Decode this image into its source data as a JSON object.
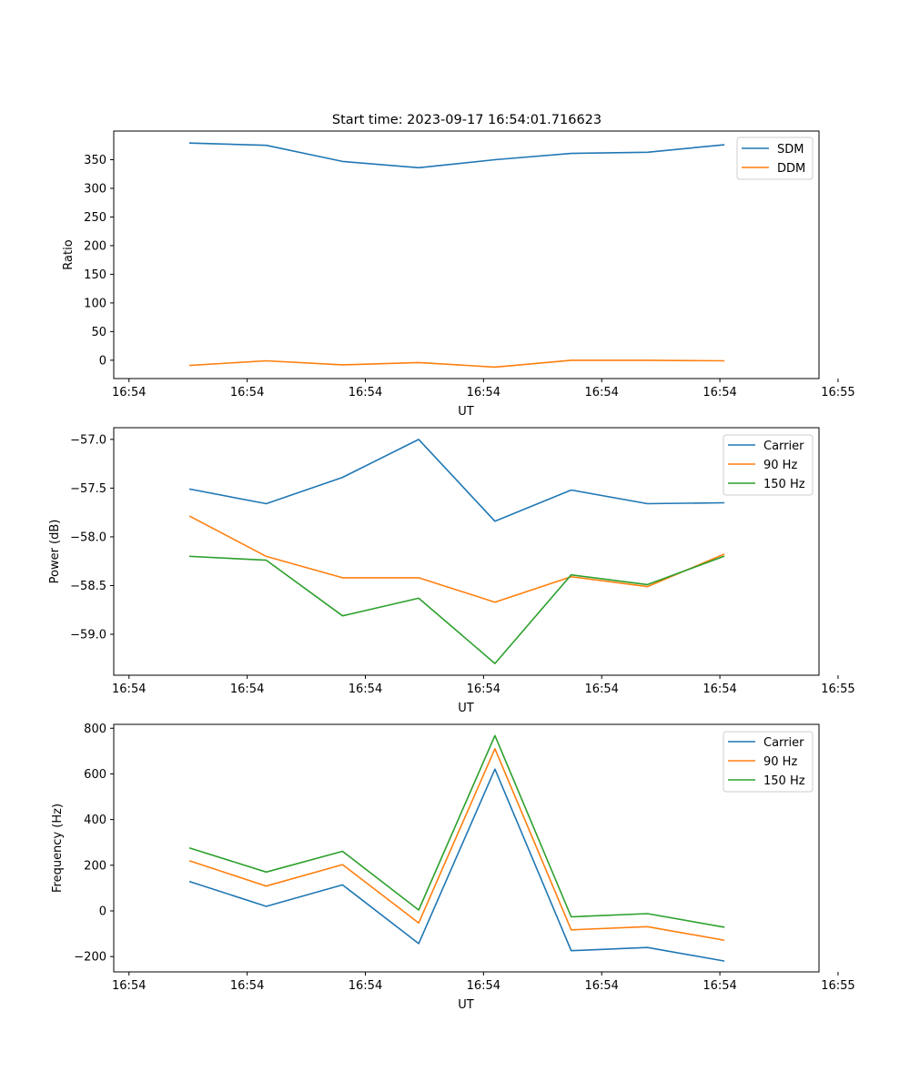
{
  "figure_title": "Start time: 2023-09-17 16:54:01.716623",
  "colors": {
    "blue": "#1f77b4",
    "orange": "#ff7f0e",
    "green": "#2ca02c",
    "axis": "#000000",
    "legend_border": "#cccccc"
  },
  "chart_data": [
    {
      "type": "line",
      "title": "Start time: 2023-09-17 16:54:01.716623",
      "xlabel": "UT",
      "ylabel": "Ratio",
      "grid": false,
      "legend_position": "top-right",
      "xlim": [
        0,
        9.25
      ],
      "ylim": [
        -32,
        400
      ],
      "x_ticks": [
        0.2,
        1.75,
        3.3,
        4.85,
        6.4,
        7.95,
        9.5
      ],
      "x_tick_labels": [
        "16:54",
        "16:54",
        "16:54",
        "16:54",
        "16:54",
        "16:54",
        "16:55"
      ],
      "y_ticks": [
        0,
        50,
        100,
        150,
        200,
        250,
        300,
        350
      ],
      "y_tick_labels": [
        "0",
        "50",
        "100",
        "150",
        "200",
        "250",
        "300",
        "350"
      ],
      "x": [
        1,
        2,
        3,
        4,
        5,
        6,
        7,
        8
      ],
      "series": [
        {
          "name": "SDM",
          "color": "#1f77b4",
          "values": [
            379,
            375,
            347,
            336,
            350,
            361,
            363,
            376
          ]
        },
        {
          "name": "DDM",
          "color": "#ff7f0e",
          "values": [
            -9,
            -1,
            -8,
            -4,
            -12,
            0,
            0,
            -1
          ]
        }
      ]
    },
    {
      "type": "line",
      "title": "",
      "xlabel": "UT",
      "ylabel": "Power (dB)",
      "grid": false,
      "legend_position": "top-right",
      "xlim": [
        0,
        9.25
      ],
      "ylim": [
        -59.42,
        -56.88
      ],
      "x_ticks": [
        0.2,
        1.75,
        3.3,
        4.85,
        6.4,
        7.95,
        9.5
      ],
      "x_tick_labels": [
        "16:54",
        "16:54",
        "16:54",
        "16:54",
        "16:54",
        "16:54",
        "16:55"
      ],
      "y_ticks": [
        -57.0,
        -57.5,
        -58.0,
        -58.5,
        -59.0
      ],
      "y_tick_labels": [
        "−57.0",
        "−57.5",
        "−58.0",
        "−58.5",
        "−59.0"
      ],
      "x": [
        1,
        2,
        3,
        4,
        5,
        6,
        7,
        8
      ],
      "series": [
        {
          "name": "Carrier",
          "color": "#1f77b4",
          "values": [
            -57.51,
            -57.66,
            -57.39,
            -57.0,
            -57.84,
            -57.52,
            -57.66,
            -57.65
          ]
        },
        {
          "name": "90 Hz",
          "color": "#ff7f0e",
          "values": [
            -57.79,
            -58.2,
            -58.42,
            -58.42,
            -58.67,
            -58.41,
            -58.51,
            -58.18
          ]
        },
        {
          "name": "150 Hz",
          "color": "#2ca02c",
          "values": [
            -58.2,
            -58.24,
            -58.81,
            -58.63,
            -59.3,
            -58.39,
            -58.49,
            -58.2
          ]
        }
      ]
    },
    {
      "type": "line",
      "title": "",
      "xlabel": "UT",
      "ylabel": "Frequency (Hz)",
      "grid": false,
      "legend_position": "top-right",
      "xlim": [
        0,
        9.25
      ],
      "ylim": [
        -267,
        817
      ],
      "x_ticks": [
        0.2,
        1.75,
        3.3,
        4.85,
        6.4,
        7.95,
        9.5
      ],
      "x_tick_labels": [
        "16:54",
        "16:54",
        "16:54",
        "16:54",
        "16:54",
        "16:54",
        "16:55"
      ],
      "y_ticks": [
        -200,
        0,
        200,
        400,
        600,
        800
      ],
      "y_tick_labels": [
        "−200",
        "0",
        "200",
        "400",
        "600",
        "800"
      ],
      "x": [
        1,
        2,
        3,
        4,
        5,
        6,
        7,
        8
      ],
      "series": [
        {
          "name": "Carrier",
          "color": "#1f77b4",
          "values": [
            128,
            20,
            114,
            -143,
            621,
            -174,
            -160,
            -219
          ]
        },
        {
          "name": "90 Hz",
          "color": "#ff7f0e",
          "values": [
            219,
            109,
            203,
            -53,
            710,
            -83,
            -69,
            -128
          ]
        },
        {
          "name": "150 Hz",
          "color": "#2ca02c",
          "values": [
            275,
            170,
            261,
            4,
            768,
            -26,
            -12,
            -71
          ]
        }
      ]
    }
  ]
}
